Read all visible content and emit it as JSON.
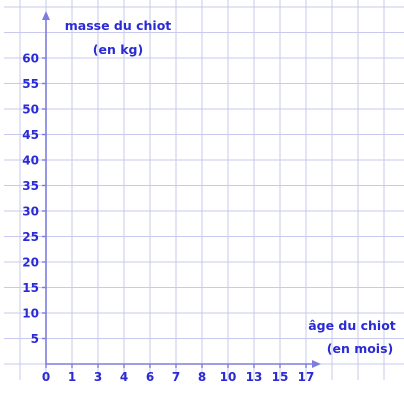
{
  "chart_data": {
    "type": "line",
    "title": "",
    "ylabel_line1": "masse du chiot",
    "ylabel_line2": "(en kg)",
    "xlabel_line1": "âge du chiot",
    "xlabel_line2": "(en mois)",
    "x_tick_labels": [
      "0",
      "1",
      "3",
      "4",
      "6",
      "7",
      "8",
      "10",
      "13",
      "15",
      "17"
    ],
    "y_tick_labels": [
      "5",
      "10",
      "15",
      "20",
      "25",
      "30",
      "35",
      "40",
      "45",
      "50",
      "55",
      "60"
    ],
    "ylim": [
      0,
      63
    ],
    "grid": true,
    "series": [],
    "colors": {
      "text": "#2b2bd6",
      "grid": "#c9c9ef",
      "axis": "#7d7de0"
    }
  }
}
